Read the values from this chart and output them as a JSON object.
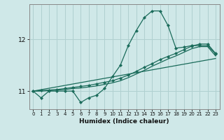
{
  "xlabel": "Humidex (Indice chaleur)",
  "bg_color": "#cfe8e8",
  "grid_color": "#b0d0d0",
  "line_color": "#1a6b5a",
  "ylim": [
    10.65,
    12.68
  ],
  "xlim": [
    -0.5,
    23.5
  ],
  "x_ticks": [
    0,
    1,
    2,
    3,
    4,
    5,
    6,
    7,
    8,
    9,
    10,
    11,
    12,
    13,
    14,
    15,
    16,
    17,
    18,
    19,
    20,
    21,
    22,
    23
  ],
  "y_ticks": [
    11,
    12
  ],
  "main_x": [
    0,
    1,
    2,
    3,
    4,
    5,
    6,
    7,
    8,
    9,
    10,
    11,
    12,
    13,
    14,
    15,
    16,
    17,
    18,
    19,
    20,
    21,
    22,
    23
  ],
  "main_y": [
    11.0,
    10.87,
    11.0,
    11.0,
    11.0,
    11.0,
    10.78,
    10.87,
    10.92,
    11.05,
    11.28,
    11.5,
    11.88,
    12.17,
    12.42,
    12.55,
    12.55,
    12.27,
    11.83,
    11.85,
    11.88,
    11.88,
    11.88,
    11.72
  ],
  "line2_x": [
    0,
    1,
    2,
    3,
    4,
    5,
    6,
    7,
    8,
    9,
    10,
    11,
    12,
    13,
    14,
    15,
    16,
    17,
    18,
    19,
    20,
    21,
    22,
    23
  ],
  "line2_y": [
    11.0,
    11.01,
    11.02,
    11.03,
    11.05,
    11.07,
    11.09,
    11.11,
    11.14,
    11.17,
    11.2,
    11.25,
    11.31,
    11.38,
    11.46,
    11.53,
    11.61,
    11.67,
    11.73,
    11.8,
    11.87,
    11.91,
    11.91,
    11.73
  ],
  "line3_x": [
    0,
    1,
    2,
    3,
    4,
    5,
    6,
    7,
    8,
    9,
    10,
    11,
    12,
    13,
    14,
    15,
    16,
    17,
    18,
    19,
    20,
    21,
    22,
    23
  ],
  "line3_y": [
    11.0,
    11.0,
    11.01,
    11.02,
    11.03,
    11.05,
    11.06,
    11.08,
    11.1,
    11.13,
    11.16,
    11.2,
    11.26,
    11.33,
    11.4,
    11.48,
    11.55,
    11.62,
    11.68,
    11.75,
    11.82,
    11.86,
    11.86,
    11.68
  ],
  "line4_x": [
    0,
    23
  ],
  "line4_y": [
    11.0,
    11.63
  ]
}
